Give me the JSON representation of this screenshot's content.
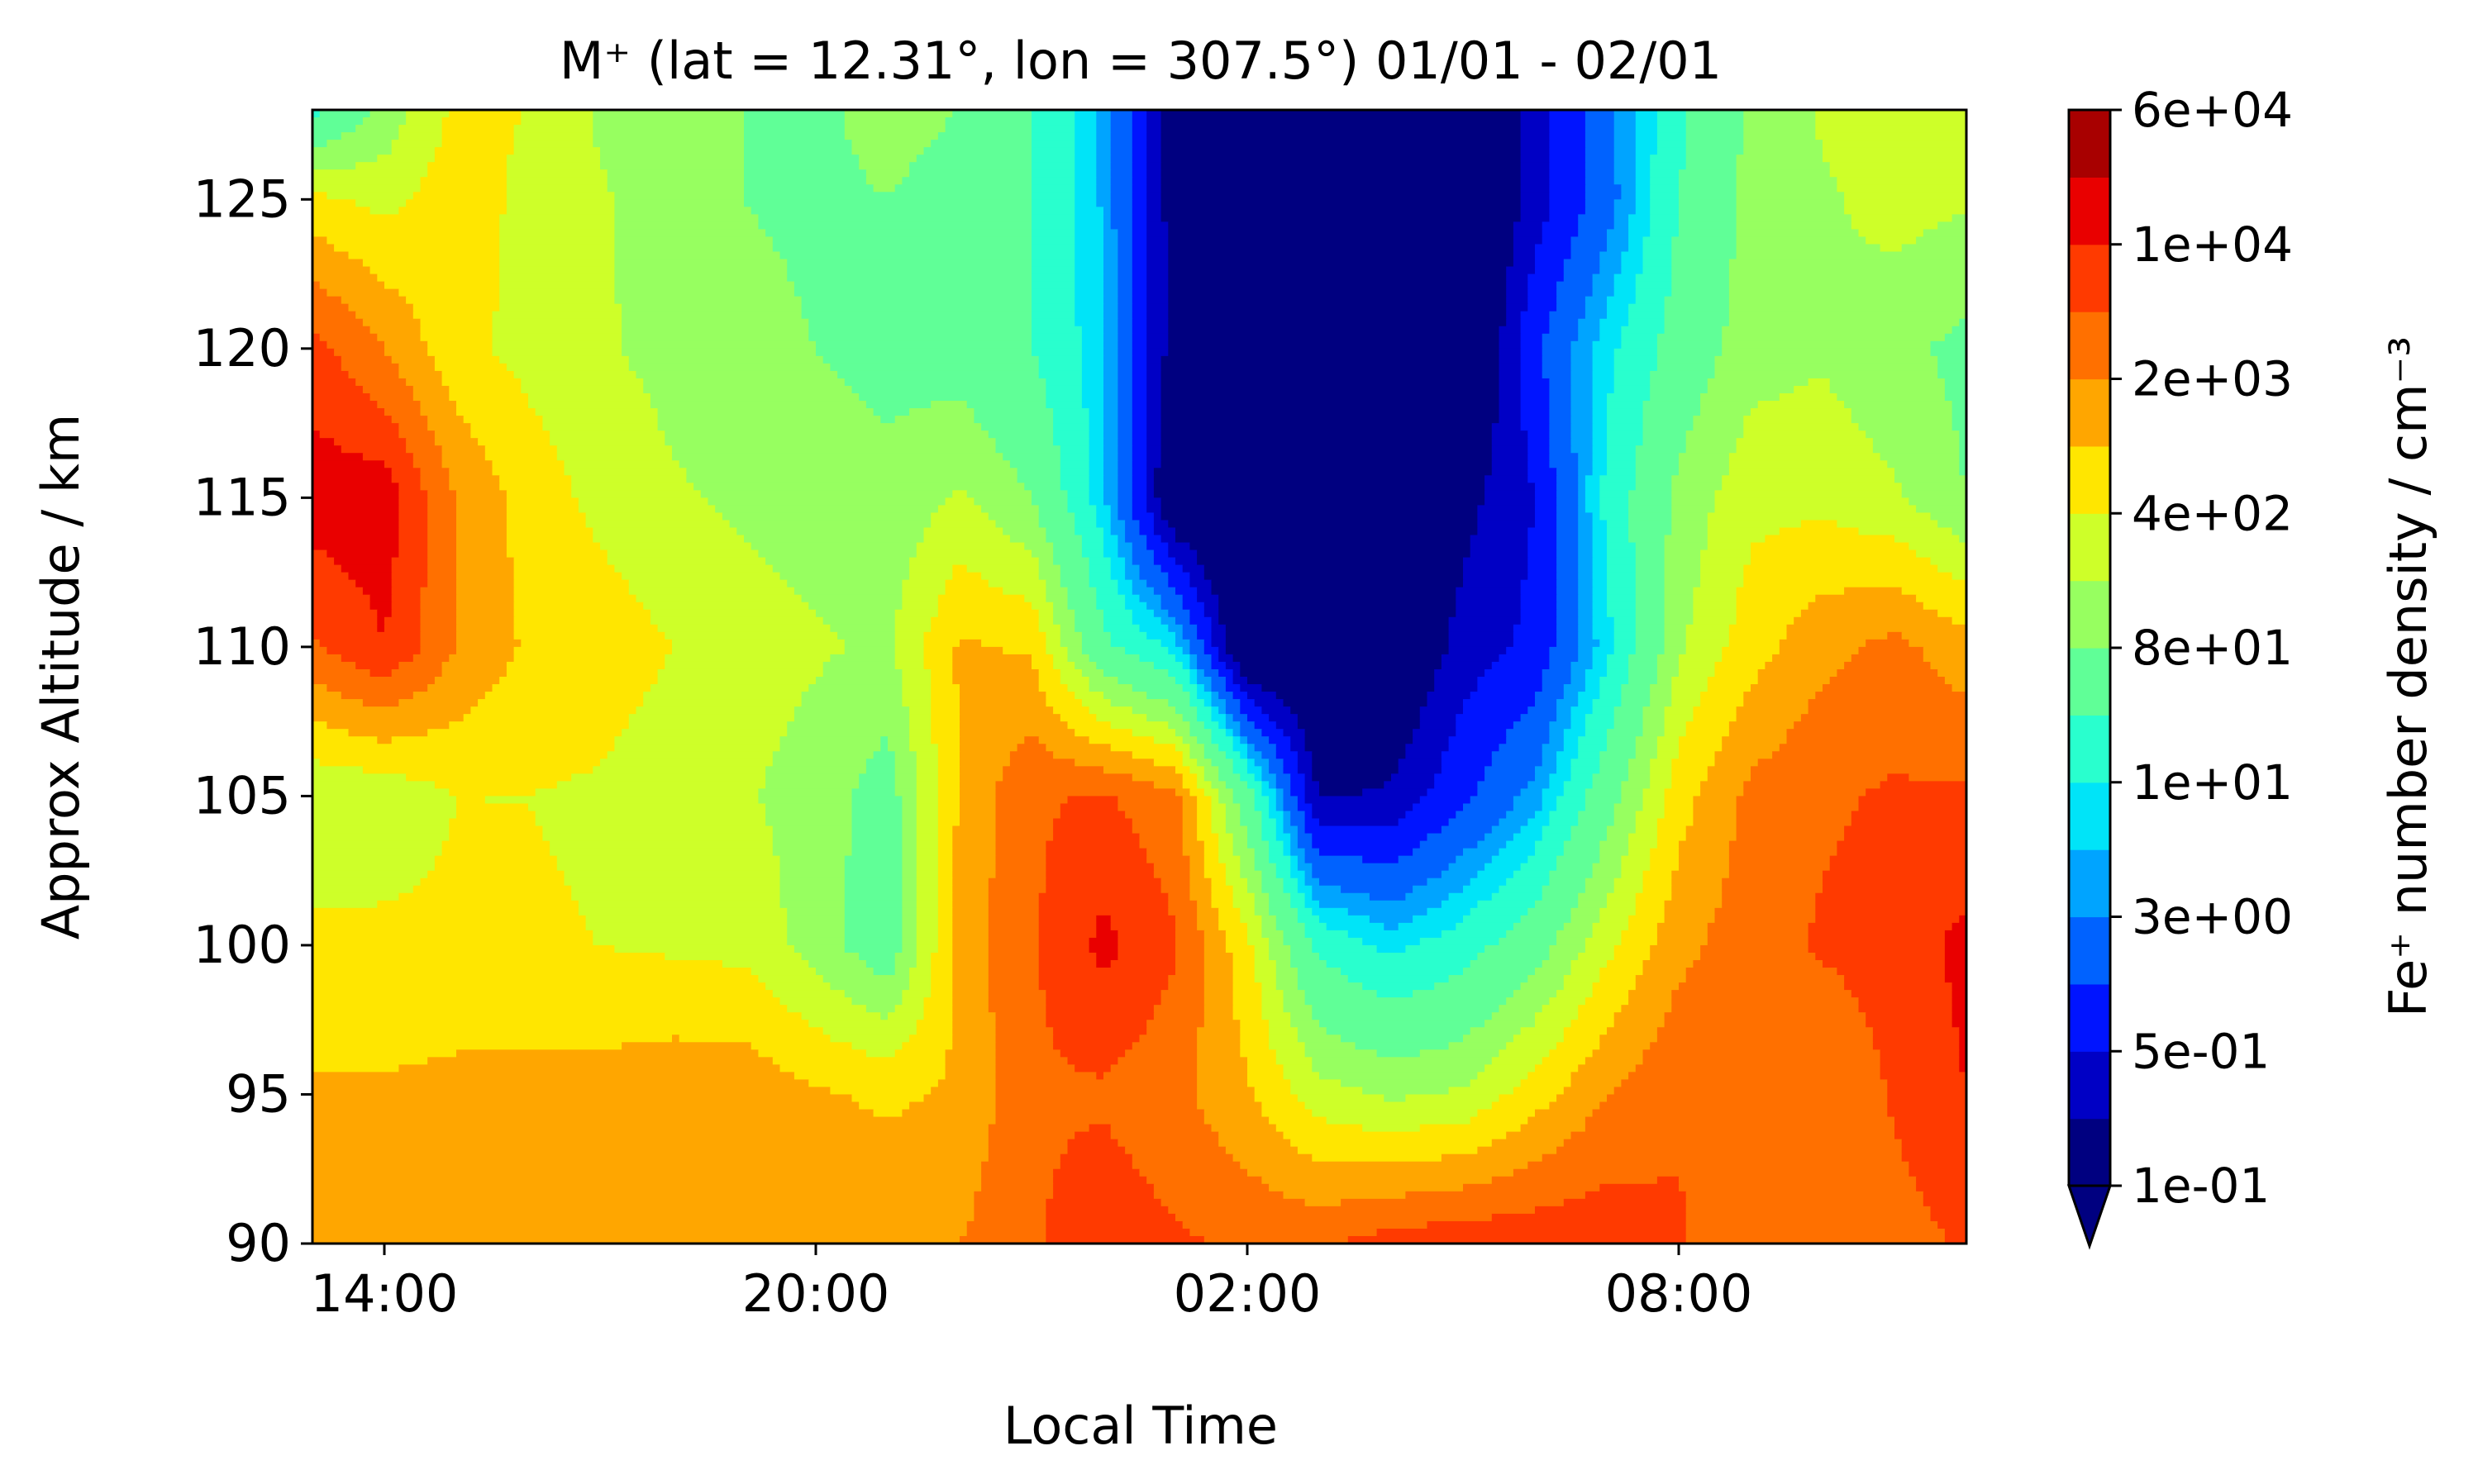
{
  "chart_data": {
    "type": "heatmap",
    "subtype": "filled-contour",
    "title": "M⁺ (lat = 12.31°, lon = 307.5°) 01/01 - 02/01",
    "xlabel": "Local Time",
    "ylabel": "Approx Altitude / km",
    "colorbar_label": "Fe⁺ number density / cm⁻³",
    "x_unit": "hours since 14:00 local time",
    "xlim": [
      -1,
      22
    ],
    "ylim": [
      90,
      128
    ],
    "x_ticks": [
      {
        "value": 0,
        "label": "14:00"
      },
      {
        "value": 6,
        "label": "20:00"
      },
      {
        "value": 12,
        "label": "02:00"
      },
      {
        "value": 18,
        "label": "08:00"
      }
    ],
    "y_ticks": [
      {
        "value": 90,
        "label": "90"
      },
      {
        "value": 95,
        "label": "95"
      },
      {
        "value": 100,
        "label": "100"
      },
      {
        "value": 105,
        "label": "105"
      },
      {
        "value": 110,
        "label": "110"
      },
      {
        "value": 115,
        "label": "115"
      },
      {
        "value": 120,
        "label": "120"
      },
      {
        "value": 125,
        "label": "125"
      }
    ],
    "colorbar": {
      "scale": "log",
      "extend": "min",
      "levels": [
        0.1,
        0.22,
        0.5,
        1.22,
        3,
        5.5,
        10,
        25,
        80,
        180,
        400,
        900,
        2000,
        4500,
        10000,
        25000,
        60000
      ],
      "ticks": [
        {
          "value": 0.1,
          "label": "1e-01"
        },
        {
          "value": 0.5,
          "label": "5e-01"
        },
        {
          "value": 3,
          "label": "3e+00"
        },
        {
          "value": 10,
          "label": "1e+01"
        },
        {
          "value": 80,
          "label": "8e+01"
        },
        {
          "value": 400,
          "label": "4e+02"
        },
        {
          "value": 2000,
          "label": "2e+03"
        },
        {
          "value": 10000,
          "label": "1e+04"
        },
        {
          "value": 60000,
          "label": "6e+04"
        }
      ],
      "colors": [
        "#000080",
        "#0000c5",
        "#0014ff",
        "#0062ff",
        "#00a4ff",
        "#00e4f8",
        "#29ffce",
        "#60ff97",
        "#97ff60",
        "#ceff29",
        "#ffe600",
        "#ffa600",
        "#ff7000",
        "#ff3a00",
        "#e90000",
        "#a80000"
      ],
      "under_color": "#000080"
    },
    "altitudes": [
      90,
      95,
      100,
      105,
      110,
      115,
      120,
      125,
      128
    ],
    "local_times": [
      -1,
      0,
      1,
      2,
      3,
      4,
      5,
      6,
      7,
      8,
      9,
      10,
      11,
      12,
      13,
      14,
      15,
      16,
      17,
      18,
      19,
      20,
      21,
      22
    ],
    "log10_density": [
      [
        3.0,
        3.0,
        3.05,
        3.1,
        3.1,
        3.1,
        3.1,
        3.1,
        3.2,
        3.3,
        3.6,
        3.9,
        3.7,
        3.6,
        3.6,
        3.8,
        3.9,
        3.9,
        3.9,
        3.7,
        3.4,
        3.3,
        3.5,
        3.7
      ],
      [
        3.0,
        3.0,
        3.05,
        3.1,
        3.1,
        3.2,
        3.2,
        3.0,
        2.9,
        3.0,
        3.6,
        3.6,
        3.4,
        3.0,
        2.4,
        2.2,
        2.3,
        2.8,
        3.3,
        3.6,
        3.4,
        3.3,
        3.7,
        4.0
      ],
      [
        2.7,
        2.7,
        2.7,
        2.65,
        2.6,
        2.55,
        2.5,
        2.1,
        1.6,
        3.1,
        3.6,
        4.1,
        3.7,
        2.7,
        1.3,
        0.9,
        1.2,
        1.7,
        2.5,
        3.2,
        3.5,
        3.7,
        3.8,
        4.1
      ],
      [
        2.3,
        2.35,
        2.6,
        2.6,
        2.55,
        2.4,
        2.3,
        2.1,
        1.7,
        3.0,
        3.6,
        3.7,
        3.4,
        1.6,
        -0.7,
        -0.6,
        0.0,
        0.6,
        1.7,
        2.8,
        3.4,
        3.6,
        3.7,
        3.7
      ],
      [
        3.6,
        4.0,
        3.3,
        2.9,
        2.8,
        2.6,
        2.4,
        2.3,
        2.2,
        3.0,
        2.9,
        1.5,
        0.9,
        -1.3,
        -1.3,
        -1.2,
        -0.5,
        -0.2,
        0.9,
        2.2,
        2.8,
        3.2,
        3.4,
        3.1
      ],
      [
        4.2,
        4.2,
        3.3,
        2.8,
        2.5,
        2.3,
        2.2,
        2.1,
        2.0,
        2.3,
        1.9,
        0.8,
        -1.2,
        -1.4,
        -1.4,
        -1.3,
        -0.8,
        -0.3,
        1.1,
        2.0,
        2.5,
        2.5,
        2.3,
        1.9
      ],
      [
        3.8,
        3.3,
        2.7,
        2.5,
        2.3,
        2.15,
        2.0,
        1.9,
        1.8,
        1.7,
        1.4,
        0.8,
        -0.9,
        -1.4,
        -1.4,
        -1.4,
        -1.35,
        0.0,
        0.9,
        1.6,
        2.1,
        2.2,
        2.0,
        1.8
      ],
      [
        2.7,
        2.5,
        2.8,
        2.5,
        2.3,
        2.05,
        1.9,
        1.85,
        1.9,
        1.8,
        1.4,
        0.7,
        -0.9,
        -1.4,
        -1.4,
        -1.4,
        -1.4,
        -0.5,
        0.3,
        1.4,
        2.0,
        2.2,
        2.4,
        2.3
      ],
      [
        1.3,
        2.0,
        2.7,
        2.6,
        2.2,
        2.0,
        1.9,
        1.85,
        2.0,
        1.9,
        1.4,
        0.7,
        -1.0,
        -1.4,
        -1.4,
        -1.4,
        -1.4,
        -0.5,
        0.4,
        1.3,
        2.0,
        2.3,
        2.6,
        2.4
      ]
    ]
  }
}
